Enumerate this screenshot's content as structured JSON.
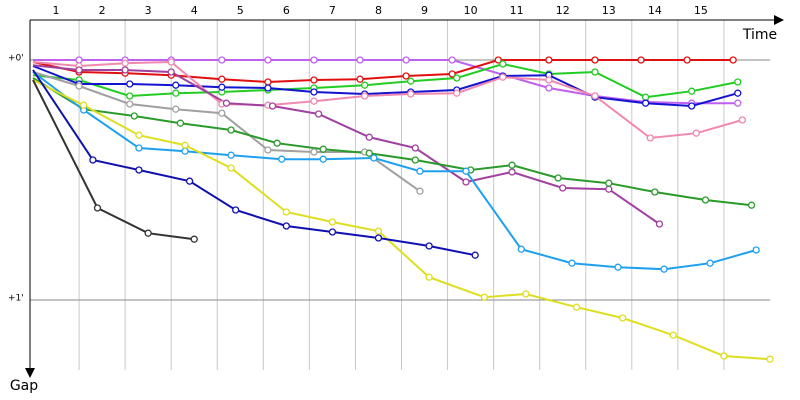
{
  "chart_data": {
    "type": "line",
    "x_label": "Time",
    "y_label": "Gap",
    "categories": [
      "1",
      "2",
      "3",
      "4",
      "5",
      "6",
      "7",
      "8",
      "9",
      "10",
      "11",
      "12",
      "13",
      "14",
      "15"
    ],
    "xlim": [
      0,
      16
    ],
    "ylim": [
      -10,
      82.5
    ],
    "y_inverted": true,
    "yticks": [
      {
        "value": 0,
        "label": "+0'"
      },
      {
        "value": 60,
        "label": "+1'"
      }
    ],
    "grid": true,
    "series": [
      {
        "color": "#c060f0",
        "x": [
          0,
          1,
          2,
          3,
          4.1,
          5.1,
          6.1,
          7.1,
          8.1,
          9.1,
          11.2,
          12.2,
          13.3,
          14.3,
          15.3
        ],
        "values": [
          0,
          0,
          0,
          0,
          0,
          0,
          0,
          0,
          0,
          0,
          7,
          9,
          10.5,
          10.8,
          10.8
        ]
      },
      {
        "color": "#e01010",
        "x": [
          0,
          1,
          2,
          3,
          4.1,
          5.1,
          6.1,
          7.1,
          8.1,
          9.1,
          10.1,
          11.2,
          12.2,
          13.2,
          14.2,
          15.2
        ],
        "values": [
          0.5,
          3,
          3.3,
          3.8,
          4.8,
          5.5,
          5,
          4.8,
          4,
          3.5,
          0,
          0,
          0,
          0,
          0,
          0
        ]
      },
      {
        "color": "#22cc22",
        "x": [
          0,
          1,
          2.1,
          3.1,
          4.1,
          5.1,
          6.1,
          7.2,
          8.2,
          9.2,
          10.2,
          11.2,
          12.2,
          13.3,
          14.3,
          15.3
        ],
        "values": [
          3.8,
          5,
          9,
          8.3,
          8,
          7.5,
          7,
          6.3,
          5.3,
          4.5,
          1,
          3.5,
          3,
          9.3,
          7.8,
          5.5
        ]
      },
      {
        "color": "#1414d0",
        "x": [
          0,
          1,
          2.1,
          3.1,
          4.1,
          5.1,
          6.1,
          7.2,
          8.2,
          9.2,
          10.2,
          11.2,
          12.2,
          13.3,
          14.3,
          15.3
        ],
        "values": [
          1.5,
          6,
          6,
          6.3,
          6.8,
          7,
          8,
          8.5,
          8,
          7.5,
          4,
          3.8,
          9.3,
          10.8,
          11.5,
          8.3
        ]
      },
      {
        "color": "#a0a0a0",
        "x": [
          0,
          1,
          2.1,
          3.1,
          4.1,
          5.1,
          6.1,
          7.2,
          8.4
        ],
        "values": [
          3,
          6.5,
          11,
          12.3,
          13.3,
          22.5,
          23,
          23,
          32.8
        ]
      },
      {
        "color": "#f088b0",
        "x": [
          0,
          1,
          2,
          3,
          4.1,
          5.1,
          6.1,
          7.2,
          8.2,
          9.2,
          10.2,
          11.2,
          12.2,
          13.4,
          14.4,
          15.4
        ],
        "values": [
          0.5,
          1.5,
          0.8,
          0.5,
          11,
          11.3,
          10.3,
          9,
          8.5,
          8.3,
          4.3,
          5,
          9,
          19.5,
          18.3,
          15
        ]
      },
      {
        "color": "#a040a0",
        "x": [
          0,
          1,
          2,
          3,
          4.2,
          5.2,
          6.2,
          7.3,
          8.3,
          9.4,
          10.4,
          11.5,
          12.5,
          13.6
        ],
        "values": [
          1.3,
          2.5,
          2.5,
          3,
          10.8,
          11.5,
          13.5,
          19.3,
          22,
          30.5,
          28,
          32,
          32.3,
          41
        ]
      },
      {
        "color": "#2a9a2a",
        "x": [
          0,
          1.1,
          2.2,
          3.2,
          4.3,
          5.3,
          6.3,
          7.3,
          8.3,
          9.5,
          10.4,
          11.4,
          12.5,
          13.5,
          14.6,
          15.6
        ],
        "values": [
          4.5,
          12.3,
          14,
          15.8,
          17.5,
          20.8,
          22.3,
          23.3,
          25,
          27.5,
          26.3,
          29.5,
          30.8,
          33,
          35,
          36.3
        ]
      },
      {
        "color": "#1ea0f0",
        "x": [
          0,
          1.1,
          2.3,
          3.3,
          4.3,
          5.4,
          6.3,
          7.4,
          8.4,
          9.4,
          10.6,
          11.7,
          12.7,
          13.7,
          14.7,
          15.7
        ],
        "values": [
          3,
          12.5,
          22,
          22.8,
          23.8,
          24.8,
          24.8,
          24.5,
          27.8,
          27.8,
          47.3,
          50.8,
          51.8,
          52.3,
          50.8,
          47.5
        ]
      },
      {
        "color": "#dede20",
        "x": [
          0,
          1.1,
          2.3,
          3.3,
          4.3,
          5.5,
          6.5,
          7.5,
          8.6,
          9.8,
          10.7,
          11.8,
          12.8,
          13.9,
          15,
          16
        ],
        "values": [
          5,
          11.3,
          18.8,
          21.3,
          27,
          38,
          40.5,
          42.8,
          54.3,
          59.3,
          58.5,
          61.8,
          64.5,
          68.8,
          74,
          74.8
        ]
      },
      {
        "color": "#1010b0",
        "x": [
          0,
          1.3,
          2.3,
          3.4,
          4.4,
          5.5,
          6.5,
          7.5,
          8.6,
          9.6
        ],
        "values": [
          2.5,
          25,
          27.5,
          30.3,
          37.5,
          41.5,
          43,
          44.5,
          46.5,
          48.8
        ]
      },
      {
        "color": "#333333",
        "x": [
          0,
          1.4,
          2.5,
          3.5
        ],
        "values": [
          5,
          37,
          43.3,
          44.8
        ]
      }
    ]
  }
}
